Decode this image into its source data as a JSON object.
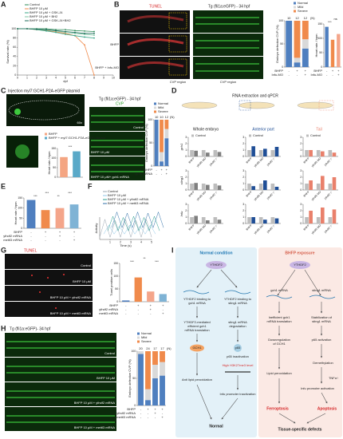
{
  "panel_labels": [
    "A",
    "B",
    "C",
    "D",
    "E",
    "F",
    "G",
    "H",
    "I"
  ],
  "panels": {
    "B": {
      "tunel": "TUNEL",
      "tg": "Tg (fli1a:eGFP) - 34 hpf",
      "rows": [
        "BHFP",
        "BHFP + Infu-MO"
      ],
      "regions": [
        "CVP region",
        "CVP region"
      ]
    },
    "C": {
      "injection": "Injection myl7:GCH1-P2A-eGFP plasmid",
      "zoom": "60x",
      "tg": "Tg (fli1a:eGFP) - 34 hpf",
      "cvp": "CVP",
      "rows": [
        "Control",
        "BHFP 10 μM",
        "BHFP 10 μM+ gch1 mRNA"
      ]
    },
    "D": {
      "title": "RNA extraction and qPCR",
      "columns": [
        "Whole embryo",
        "Anterior part",
        "Tail"
      ]
    },
    "G": {
      "tunel": "TUNEL",
      "rows": [
        "Control",
        "BHFP 10 μM",
        "BHFP 10 μM + ythdf2 mRNA",
        "BHFP 10 μM + mettl3 mRNA"
      ]
    },
    "H": {
      "tg": "Tg (fli1a:eGFP)- 34 hpf",
      "rows": [
        "Control",
        "BHFP 10 μM",
        "BHFP 10 μM + ythdf2 mRNA",
        "BHFP 10 μM + mettl3 mRNA"
      ]
    },
    "I": {
      "normal": {
        "title": "Normal condition",
        "protein": "YTHDF2",
        "bind_gch1": [
          "YTHDF2 binding to",
          "gch1 mRNA"
        ],
        "bind_sting1": [
          "YTHDF2 binding to",
          "sting1 mRNA"
        ],
        "translation": [
          "YTHDF2-mediated",
          "efficient gch1",
          "mRNA translation"
        ],
        "degradation": [
          "sting1 mRNA",
          "degradation"
        ],
        "gch1": "GCH1",
        "p65": "p65",
        "p65_text": "p65 inactivation",
        "h3k27": "High H3K27me3 level",
        "anti": "Anti lipid peroxidation",
        "infu": "Infu promoter inactivation",
        "outcome": "Normal"
      },
      "bhfp": {
        "title": "BHFP exposure",
        "protein": "YTHDF2",
        "gch1_mrna": "gch1 mRNA",
        "sting1_mrna": "sting1 mRNA",
        "inefficient": [
          "Inefficient gch1",
          "mRNA translation"
        ],
        "stabilization": [
          "Stabilization of",
          "sting1 mRNA"
        ],
        "down": [
          "Downregulation",
          "of GCH1"
        ],
        "p65_text": "p65 activation",
        "demethylation": "Demethylation",
        "lipid": "Lipid peroxidation",
        "tnf": "TNFα↑",
        "infu": "Infu promoter activation",
        "ferroptosis": "Ferroptosis",
        "apoptosis": "Apoptosis",
        "outcome": "Tissue-specific defects"
      }
    }
  },
  "chart_data": [
    {
      "type": "line",
      "ylabel": "Survival rate (%)",
      "xlabel": "dpf",
      "x": [
        0,
        1,
        2,
        3,
        4,
        5,
        6,
        7,
        8
      ],
      "xlim": [
        0,
        10
      ],
      "xticks": [
        0,
        1,
        2,
        3,
        4,
        5,
        6,
        7,
        8,
        9,
        10
      ],
      "ylim": [
        0,
        100
      ],
      "yticks": [
        0,
        20,
        40,
        60,
        80,
        100
      ],
      "series": [
        {
          "name": "Control",
          "color": "#2e8b57",
          "values": [
            100,
            100,
            100,
            100,
            98,
            98,
            96,
            95,
            94
          ]
        },
        {
          "name": "BHFP 10 μM",
          "color": "#f08a4b",
          "values": [
            100,
            100,
            98,
            96,
            93,
            90,
            85,
            65,
            0
          ]
        },
        {
          "name": "BHFP 10 μM + GSK-J4",
          "color": "#3aa88a",
          "values": [
            100,
            100,
            98,
            95,
            92,
            88,
            85,
            82,
            80
          ]
        },
        {
          "name": "BHFP 10 μM + BH2",
          "color": "#7cc3a0",
          "values": [
            100,
            100,
            99,
            97,
            95,
            92,
            90,
            88,
            86
          ]
        },
        {
          "name": "BHFP 10 μM + GSK-J4+BH2",
          "color": "#1d6b5a",
          "values": [
            100,
            100,
            99,
            98,
            96,
            94,
            92,
            90,
            90
          ]
        }
      ]
    },
    {
      "type": "stacked_bar",
      "ylabel": "Embryo defective CVP (%)",
      "ylim": [
        0,
        100
      ],
      "yticks": [
        0,
        50,
        100
      ],
      "series": [
        {
          "name": "Normal",
          "color": "#4f7fbf",
          "values": [
            100,
            10,
            40
          ]
        },
        {
          "name": "Mild",
          "color": "#d9d9d9",
          "values": [
            0,
            10,
            20
          ]
        },
        {
          "name": "Severe",
          "color": "#f08a4b",
          "values": [
            0,
            80,
            40
          ]
        }
      ],
      "counts": [
        10,
        12,
        12
      ],
      "count_unit": "(N)",
      "conditions": [
        {
          "name": "BHFP",
          "marks": [
            "-",
            "+",
            "+"
          ]
        },
        {
          "name": "Infu-MO",
          "marks": [
            "-",
            "-",
            "+"
          ]
        }
      ]
    },
    {
      "type": "bar",
      "ylabel": "Heart rate / bpm",
      "values": [
        140,
        95,
        115
      ],
      "colors": [
        "#4f7fbf",
        "#f08a4b",
        "#f4a58a"
      ],
      "ylim": [
        0,
        150
      ],
      "yticks": [
        0,
        50,
        100,
        150
      ],
      "annotations": [
        "***",
        "ns"
      ],
      "conditions": [
        {
          "name": "BHFP",
          "marks": [
            "-",
            "+",
            "+"
          ]
        },
        {
          "name": "Infu-MO",
          "marks": [
            "-",
            "-",
            "+"
          ]
        }
      ]
    },
    {
      "type": "bar",
      "ylabel": "Heart rate / bpm",
      "values": [
        105,
        135
      ],
      "colors": [
        "#f4a582",
        "#5aa9c8"
      ],
      "legend": [
        "BHFP",
        "BHFP + myl7:GCH1-P2A-eGFP plasmid"
      ],
      "ylim": [
        0,
        150
      ],
      "yticks": [
        0,
        50,
        100,
        150
      ],
      "annotations": [
        "***"
      ]
    },
    {
      "type": "stacked_bar",
      "ylabel": "Embryo defective CVP (%)",
      "ylim": [
        0,
        100
      ],
      "yticks": [
        0,
        50,
        100
      ],
      "series": [
        {
          "name": "Normal",
          "color": "#4f7fbf",
          "values": [
            100,
            10,
            60
          ]
        },
        {
          "name": "Mild",
          "color": "#d9d9d9",
          "values": [
            0,
            20,
            20
          ]
        },
        {
          "name": "Severe",
          "color": "#f08a4b",
          "values": [
            0,
            70,
            20
          ]
        }
      ],
      "counts": [
        10,
        10,
        12
      ],
      "count_unit": "(N)",
      "conditions": [
        {
          "name": "BHFP",
          "marks": [
            "-",
            "+",
            "+"
          ]
        },
        {
          "name": "gch1 mRNA",
          "marks": [
            "-",
            "-",
            "+"
          ]
        }
      ]
    },
    {
      "type": "bar",
      "ylabel": "Heart rate / bpm",
      "values": [
        140,
        90,
        100,
        118
      ],
      "colors": [
        "#4f7fbf",
        "#f08a4b",
        "#f4a58a",
        "#7fb3d5"
      ],
      "ylim": [
        0,
        150
      ],
      "yticks": [
        0,
        50,
        100,
        150
      ],
      "annotations": [
        "***",
        "***",
        "**",
        "***"
      ],
      "conditions": [
        {
          "name": "BHFP",
          "marks": [
            "-",
            "+",
            "+",
            "+"
          ]
        },
        {
          "name": "ythdf2 mRNA",
          "marks": [
            "-",
            "-",
            "+",
            "-"
          ]
        },
        {
          "name": "mettl3 mRNA",
          "marks": [
            "-",
            "-",
            "-",
            "+"
          ]
        }
      ]
    },
    {
      "type": "line",
      "ylabel": "Activity",
      "xlabel": "Time (s)",
      "x": [
        0,
        0.5,
        1,
        1.5,
        2,
        2.5,
        3,
        3.5,
        4,
        4.5,
        5
      ],
      "xlim": [
        0,
        5
      ],
      "xticks": [
        1,
        2,
        3,
        4,
        5
      ],
      "ylim": [
        0,
        1
      ],
      "series": [
        {
          "name": "Control",
          "color": "#9aa5b1",
          "values": [
            0.1,
            0.9,
            0.1,
            0.85,
            0.1,
            0.9,
            0.1,
            0.85,
            0.1,
            0.9,
            0.1
          ]
        },
        {
          "name": "BHFP 10 μM",
          "color": "#8fc7e8",
          "values": [
            0.1,
            0.5,
            0.1,
            0.45,
            0.1,
            0.5,
            0.1,
            0.45,
            0.1,
            0.5,
            0.1
          ]
        },
        {
          "name": "BHFP 10 μM + ythdf2 mRNA",
          "color": "#2a9d8f",
          "values": [
            0.1,
            0.75,
            0.1,
            0.7,
            0.1,
            0.75,
            0.1,
            0.7,
            0.1,
            0.75,
            0.1
          ]
        },
        {
          "name": "BHFP 10 μM + mettl3 mRNA",
          "color": "#2f6fa8",
          "values": [
            0.1,
            0.8,
            0.1,
            0.75,
            0.1,
            0.8,
            0.1,
            0.75,
            0.1,
            0.8,
            0.1
          ]
        }
      ]
    },
    {
      "type": "bar",
      "ylabel": "Tunel positive cells",
      "values": [
        5,
        95,
        40,
        30
      ],
      "colors": [
        "#4f7fbf",
        "#f08a4b",
        "#f4a58a",
        "#7fb3d5"
      ],
      "ylim": [
        0,
        150
      ],
      "yticks": [
        0,
        50,
        100,
        150
      ],
      "annotations": [
        "***",
        "**",
        "***"
      ],
      "conditions": [
        {
          "name": "BHFP",
          "marks": [
            "-",
            "+",
            "+",
            "+"
          ]
        },
        {
          "name": "ythdf2 mRNA",
          "marks": [
            "-",
            "-",
            "+",
            "-"
          ]
        },
        {
          "name": "mettl3 mRNA",
          "marks": [
            "-",
            "-",
            "-",
            "+"
          ]
        }
      ]
    },
    {
      "type": "stacked_bar",
      "ylabel": "Embryo defective CVP (%)",
      "ylim": [
        0,
        100
      ],
      "yticks": [
        0,
        50,
        100
      ],
      "series": [
        {
          "name": "Normal",
          "color": "#4f7fbf",
          "values": [
            95,
            10,
            50,
            55
          ]
        },
        {
          "name": "Mild",
          "color": "#d9d9d9",
          "values": [
            5,
            20,
            25,
            25
          ]
        },
        {
          "name": "Severe",
          "color": "#f08a4b",
          "values": [
            0,
            70,
            25,
            20
          ]
        }
      ],
      "counts": [
        20,
        24,
        17,
        17
      ],
      "count_unit": "(N)",
      "conditions": [
        {
          "name": "BHFP",
          "marks": [
            "-",
            "+",
            "+",
            "+"
          ]
        },
        {
          "name": "ythdf2 mRNA",
          "marks": [
            "-",
            "-",
            "+",
            "-"
          ]
        },
        {
          "name": "mettl3 mRNA",
          "marks": [
            "-",
            "-",
            "-",
            "+"
          ]
        }
      ]
    },
    {
      "type": "bar",
      "ylabel": "gch1",
      "categories": [
        "BHFP",
        "ythdf2-MO",
        "ythdf2⁻/⁻"
      ],
      "ylim": [
        0,
        3
      ],
      "yticks": [
        0,
        1,
        2,
        3
      ],
      "series": [
        {
          "name": "Control",
          "color": "#bdbdbd",
          "values": [
            1,
            1,
            1
          ]
        },
        {
          "color": "#7f7f7f",
          "values": [
            0.9,
            0.6,
            0.7
          ]
        }
      ]
    },
    {
      "type": "bar",
      "categories": [
        "BHFP",
        "ythdf2-MO",
        "ythdf2⁻/⁻"
      ],
      "ylim": [
        0,
        3
      ],
      "yticks": [
        0,
        1,
        2,
        3
      ],
      "series": [
        {
          "name": "Control",
          "color": "#bdbdbd",
          "values": [
            1,
            1,
            1
          ]
        },
        {
          "color": "#1f4e96",
          "values": [
            1.6,
            1.2,
            1.5
          ]
        }
      ]
    },
    {
      "type": "bar",
      "categories": [
        "BHFP",
        "ythdf2-MO",
        "ythdf2⁻/⁻"
      ],
      "ylim": [
        0,
        3
      ],
      "yticks": [
        0,
        1,
        2,
        3
      ],
      "series": [
        {
          "name": "Control",
          "color": "#bdbdbd",
          "values": [
            1,
            1,
            1
          ]
        },
        {
          "color": "#e9806b",
          "values": [
            1.0,
            0.8,
            0.6
          ]
        }
      ]
    },
    {
      "type": "bar",
      "ylabel": "sting1",
      "categories": [
        "BHFP",
        "ythdf2-MO",
        "ythdf2⁻/⁻"
      ],
      "ylim": [
        0,
        3
      ],
      "yticks": [
        0,
        1,
        2,
        3
      ],
      "series": [
        {
          "color": "#bdbdbd",
          "values": [
            1,
            1,
            1
          ]
        },
        {
          "color": "#7f7f7f",
          "values": [
            1.1,
            0.8,
            0.7
          ]
        }
      ]
    },
    {
      "type": "bar",
      "categories": [
        "BHFP",
        "ythdf2-MO",
        "ythdf2⁻/⁻"
      ],
      "ylim": [
        0,
        3
      ],
      "yticks": [
        0,
        1,
        2,
        3
      ],
      "series": [
        {
          "color": "#bdbdbd",
          "values": [
            1,
            1,
            1
          ]
        },
        {
          "color": "#1f4e96",
          "values": [
            0.6,
            1.5,
            0.5
          ]
        }
      ]
    },
    {
      "type": "bar",
      "categories": [
        "BHFP",
        "ythdf2-MO",
        "ythdf2⁻/⁻"
      ],
      "ylim": [
        0,
        3
      ],
      "yticks": [
        0,
        1,
        2,
        3
      ],
      "series": [
        {
          "color": "#bdbdbd",
          "values": [
            1,
            1,
            1
          ]
        },
        {
          "color": "#e9806b",
          "values": [
            1.5,
            2.2,
            2.0
          ]
        }
      ]
    },
    {
      "type": "bar",
      "ylabel": "Infu",
      "categories": [
        "BHFP",
        "ythdf2-MO",
        "ythdf2⁻/⁻"
      ],
      "ylim": [
        0,
        3
      ],
      "yticks": [
        0,
        1,
        2,
        3
      ],
      "series": [
        {
          "color": "#bdbdbd",
          "values": [
            1,
            1,
            1
          ]
        },
        {
          "color": "#7f7f7f",
          "values": [
            1.2,
            0.5,
            0.6
          ]
        }
      ]
    },
    {
      "type": "bar",
      "categories": [
        "BHFP",
        "ythdf2-MO",
        "ythdf2⁻/⁻"
      ],
      "ylim": [
        0,
        3
      ],
      "yticks": [
        0,
        1,
        2,
        3
      ],
      "series": [
        {
          "color": "#bdbdbd",
          "values": [
            1,
            1,
            1
          ]
        },
        {
          "color": "#1f4e96",
          "values": [
            1.0,
            0.6,
            0.8
          ]
        }
      ]
    },
    {
      "type": "bar",
      "categories": [
        "BHFP",
        "ythdf2-MO",
        "ythdf2⁻/⁻"
      ],
      "ylim": [
        0,
        3
      ],
      "yticks": [
        0,
        1,
        2,
        3
      ],
      "series": [
        {
          "color": "#bdbdbd",
          "values": [
            1,
            1,
            1
          ]
        },
        {
          "color": "#e9806b",
          "values": [
            2.0,
            2.5,
            2.2
          ]
        }
      ]
    }
  ]
}
